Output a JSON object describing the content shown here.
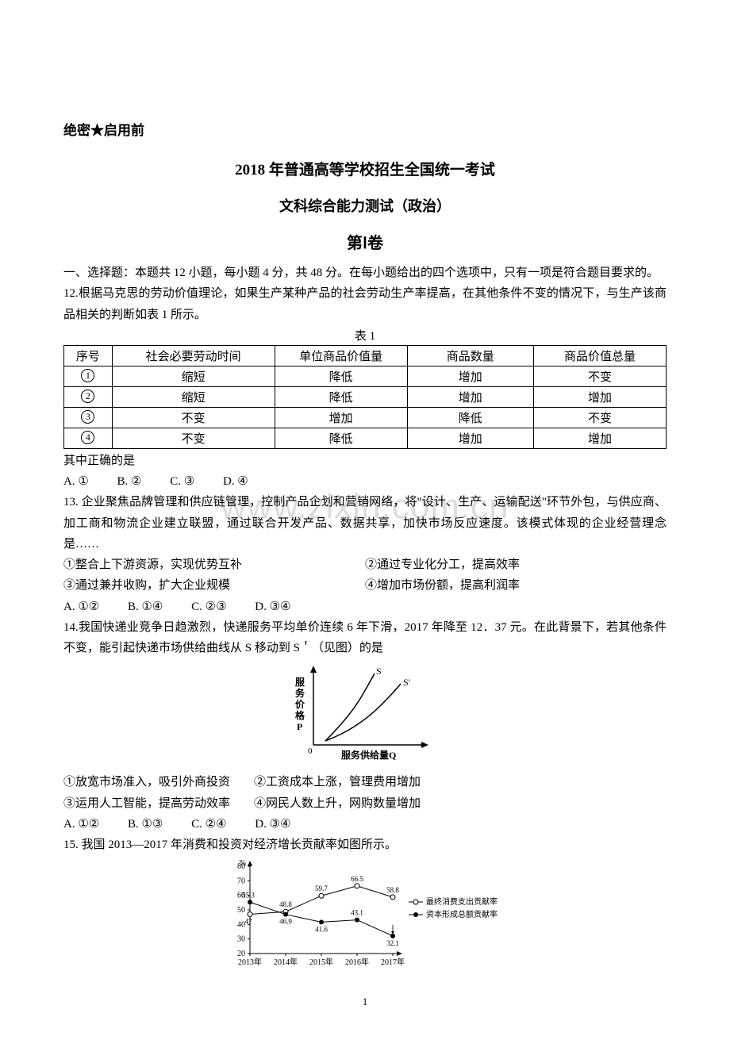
{
  "secret": "绝密★启用前",
  "title_main": "2018 年普通高等学校招生全国统一考试",
  "title_sub": "文科综合能力测试（政治）",
  "title_volume": "第Ⅰ卷",
  "watermark": "www.zixin.com.cn",
  "section1_intro": "一、选择题：本题共 12 小题，每小题 4 分，共 48 分。在每小题给出的四个选项中，只有一项是符合题目要求的。",
  "q12_stem": "12.根据马克思的劳动价值理论，如果生产某种产品的社会劳动生产率提高，在其他条件不变的情况下，与生产该商品相关的判断如表 1 所示。",
  "table1": {
    "caption": "表 1",
    "headers": [
      "序号",
      "社会必要劳动时间",
      "单位商品价值量",
      "商品数量",
      "商品价值总量"
    ],
    "rows": [
      [
        "①",
        "缩短",
        "降低",
        "增加",
        "不变"
      ],
      [
        "②",
        "缩短",
        "降低",
        "增加",
        "增加"
      ],
      [
        "③",
        "不变",
        "增加",
        "降低",
        "不变"
      ],
      [
        "④",
        "不变",
        "降低",
        "增加",
        "增加"
      ]
    ]
  },
  "q12_tail": "其中正确的是",
  "q12_opts": {
    "a": "A. ①",
    "b": "B. ②",
    "c": "C. ③",
    "d": "D. ④"
  },
  "q13_stem": "13. 企业聚焦品牌管理和供应链管理，控制产品企划和营销网络，将\"设计、生产、运输配送\"环节外包，与供应商、加工商和物流企业建立联盟，通过联合开发产品、数据共享，加快市场反应速度。该模式体现的企业经营理念是……",
  "q13_sub": {
    "s1": "①整合上下游资源，实现优势互补",
    "s2": "②通过专业化分工，提高效率",
    "s3": "③通过兼并收购，扩大企业规模",
    "s4": "④增加市场份额，提高利润率"
  },
  "q13_opts": {
    "a": "A. ①②",
    "b": "B. ①④",
    "c": "C. ②③",
    "d": "D. ③④"
  },
  "q14_stem": "14.我国快递业竞争日趋激烈，快递服务平均单价连续 6 年下滑，2017 年降至 12．37 元。在此背景下，若其他条件不变，能引起快递市场供给曲线从 S 移动到 S＇（见图）的是",
  "q14_chart": {
    "type": "line",
    "y_label": "服务价格P",
    "x_label": "服务供给量Q",
    "curves": [
      "S",
      "S′"
    ],
    "axis_color": "#000000",
    "curve_color": "#000000",
    "background_color": "#ffffff"
  },
  "q14_sub": {
    "line1": "①放宽市场准入，吸引外商投资　　②工资成本上涨，管理费用增加",
    "line2": "③运用人工智能，提高劳动效率　　④网民人数上升，网购数量增加"
  },
  "q14_opts": {
    "a": "A. ①②",
    "b": "B. ①③",
    "c": "C. ②④",
    "d": "D. ③④"
  },
  "q15_stem": "15. 我国 2013—2017 年消费和投资对经济增长贡献率如图所示。",
  "q15_chart": {
    "type": "line",
    "y_label_unit": "%",
    "y_ticks": [
      20,
      30,
      40,
      50,
      60,
      70,
      80
    ],
    "x_categories": [
      "2013年",
      "2014年",
      "2015年",
      "2016年",
      "2017年"
    ],
    "series": [
      {
        "name": "最终消费支出贡献率",
        "marker": "circle-open",
        "values": [
          47,
          48.8,
          59.7,
          66.5,
          58.8
        ],
        "color": "#000000"
      },
      {
        "name": "资本形成总额贡献率",
        "marker": "circle-solid",
        "values": [
          55.3,
          46.9,
          41.6,
          43.1,
          32.1
        ],
        "color": "#000000"
      }
    ],
    "data_labels": {
      "55.3": [
        0,
        55.3
      ],
      "48.8": [
        1,
        48.8
      ],
      "47": [
        0,
        47
      ],
      "46.9": [
        1,
        46.9
      ],
      "59.7": [
        2,
        59.7
      ],
      "41.6": [
        2,
        41.6
      ],
      "66.5": [
        3,
        66.5
      ],
      "43.1": [
        3,
        43.1
      ],
      "58.8": [
        4,
        58.8
      ],
      "32.1": [
        4,
        32.1
      ]
    },
    "background_color": "#ffffff",
    "axis_color": "#000000"
  },
  "page_num": "1"
}
